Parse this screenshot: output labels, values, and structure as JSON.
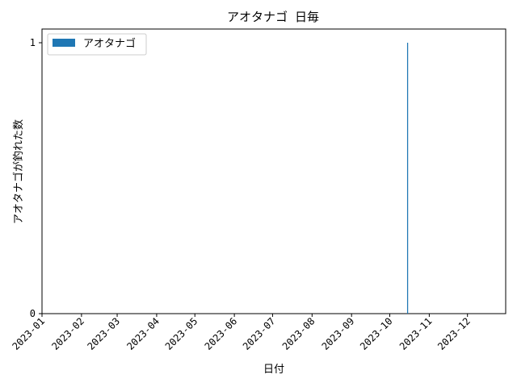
{
  "chart_data": {
    "type": "bar",
    "title": "アオタナゴ 日毎",
    "xlabel": "日付",
    "ylabel": "アオタナゴが釣れた数",
    "xlim": [
      "2023-01-01",
      "2023-12-31"
    ],
    "ylim": [
      0,
      1
    ],
    "x_tick_labels": [
      "2023-01",
      "2023-02",
      "2023-03",
      "2023-04",
      "2023-05",
      "2023-06",
      "2023-07",
      "2023-08",
      "2023-09",
      "2023-10",
      "2023-11",
      "2023-12"
    ],
    "y_tick_labels": [
      "0",
      "1"
    ],
    "series": [
      {
        "name": "アオタナゴ",
        "color": "#1f77b4",
        "points": [
          {
            "x": "2023-10-15",
            "y": 1
          }
        ]
      }
    ],
    "legend": {
      "position": "top-left",
      "entries": [
        "アオタナゴ"
      ]
    },
    "grid": false
  }
}
